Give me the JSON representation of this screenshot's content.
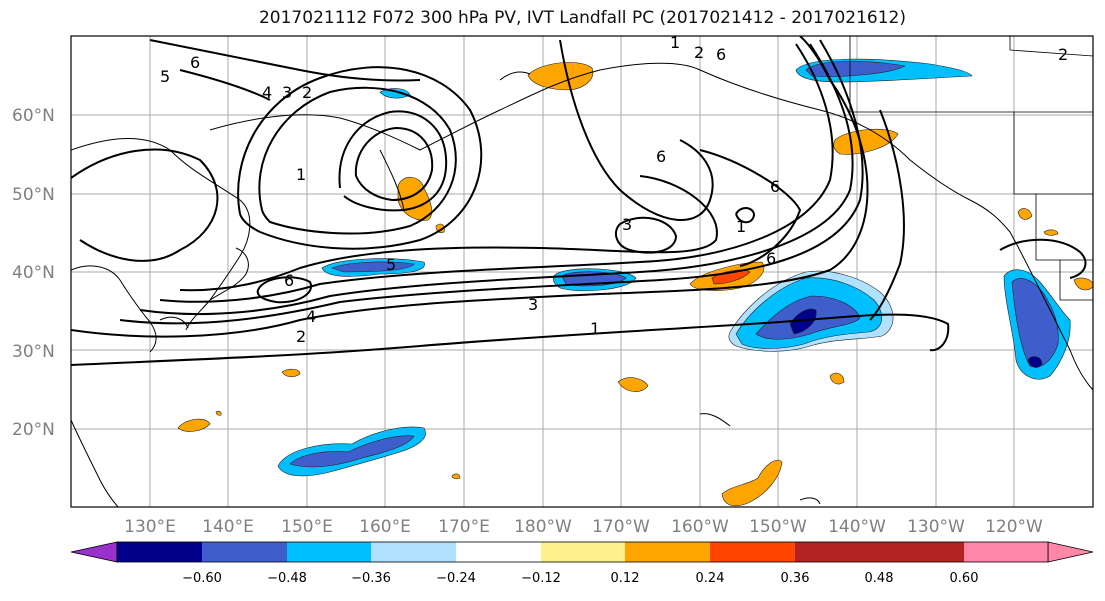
{
  "title": "2017021112 F072 300 hPa PV, IVT Landfall PC (2017021412 - 2017021612)",
  "map": {
    "lat_labels": [
      "20°N",
      "30°N",
      "40°N",
      "50°N",
      "60°N"
    ],
    "lon_labels": [
      "130°E",
      "140°E",
      "150°E",
      "160°E",
      "170°E",
      "180°W",
      "170°W",
      "160°W",
      "150°W",
      "140°W",
      "130°W",
      "120°W"
    ],
    "contour_labels": [
      "6",
      "5",
      "4",
      "3",
      "2",
      "1",
      "6",
      "5",
      "3",
      "6",
      "6",
      "4",
      "2",
      "1",
      "3",
      "6",
      "1",
      "1",
      "2",
      "6",
      "2"
    ]
  },
  "colorbar": {
    "ticks": [
      "−0.60",
      "−0.48",
      "−0.36",
      "−0.24",
      "−0.12",
      "0.12",
      "0.24",
      "0.36",
      "0.48",
      "0.60"
    ],
    "colors": [
      "#9932cc",
      "#00008b",
      "#3e5ecc",
      "#00bfff",
      "#b0e2ff",
      "#ffffff",
      "#fff08c",
      "#ffa500",
      "#ff4500",
      "#b22222",
      "#ff88a8"
    ]
  }
}
